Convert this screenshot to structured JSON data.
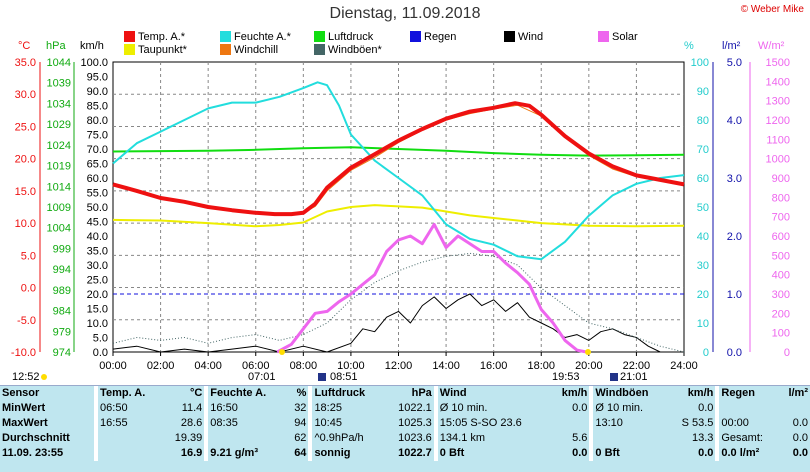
{
  "title": "Dienstag, 11.09.2018",
  "copyright": "© Weber Mike",
  "legend": [
    {
      "label": "Temp. A.*",
      "color": "#ee1111"
    },
    {
      "label": "Feuchte A.*",
      "color": "#22dddd"
    },
    {
      "label": "Luftdruck",
      "color": "#11dd11"
    },
    {
      "label": "Regen",
      "color": "#1111dd"
    },
    {
      "label": "Wind",
      "color": "#000000"
    },
    {
      "label": "Solar",
      "color": "#ee66ee"
    },
    {
      "label": "Taupunkt*",
      "color": "#eeee00"
    },
    {
      "label": "Windchill",
      "color": "#ee7711"
    },
    {
      "label": "Windböen*",
      "color": "#446666"
    }
  ],
  "units": {
    "temp": "°C",
    "press": "hPa",
    "wind": "km/h",
    "hum": "%",
    "rain": "l/m²",
    "solar": "W/m²"
  },
  "bottom_bar": {
    "left": "12:52",
    "sunrise": "07:01",
    "moonrise": "08:51",
    "sunset": "19:53",
    "moonset": "21:01"
  },
  "chart_data": {
    "type": "line",
    "x_ticks": [
      "00:00",
      "02:00",
      "04:00",
      "06:00",
      "08:00",
      "10:00",
      "12:00",
      "14:00",
      "16:00",
      "18:00",
      "20:00",
      "22:00",
      "24:00"
    ],
    "axes": {
      "temp": {
        "label": "°C",
        "min": -10,
        "max": 35,
        "ticks": [
          "35.0",
          "30.0",
          "25.0",
          "20.0",
          "15.0",
          "10.0",
          "5.0",
          "0.0",
          "-5.0",
          "-10.0"
        ]
      },
      "press": {
        "label": "hPa",
        "min": 974,
        "max": 1044,
        "ticks": [
          "1044",
          "1039",
          "1034",
          "1029",
          "1024",
          "1019",
          "1014",
          "1009",
          "1004",
          "999",
          "994",
          "989",
          "984",
          "979",
          "974"
        ]
      },
      "wind": {
        "label": "km/h",
        "min": 0,
        "max": 100,
        "ticks": [
          "100.0",
          "95.0",
          "90.0",
          "85.0",
          "80.0",
          "75.0",
          "70.0",
          "65.0",
          "60.0",
          "55.0",
          "50.0",
          "45.0",
          "40.0",
          "35.0",
          "30.0",
          "25.0",
          "20.0",
          "15.0",
          "10.0",
          "5.0",
          "0.0"
        ]
      },
      "hum": {
        "label": "%",
        "min": 0,
        "max": 100,
        "ticks": [
          "100",
          "90",
          "80",
          "70",
          "60",
          "50",
          "40",
          "30",
          "20",
          "10",
          "0"
        ]
      },
      "rain": {
        "label": "l/m²",
        "min": 0,
        "max": 5,
        "ticks": [
          "5.0",
          "4.0",
          "3.0",
          "2.0",
          "1.0",
          "0.0"
        ]
      },
      "solar": {
        "label": "W/m²",
        "min": 0,
        "max": 1500,
        "ticks": [
          "1500",
          "1400",
          "1300",
          "1200",
          "1100",
          "1000",
          "900",
          "800",
          "700",
          "600",
          "500",
          "400",
          "300",
          "200",
          "100",
          "0"
        ]
      }
    },
    "series": [
      {
        "name": "Temp. A.*",
        "axis": "temp",
        "color": "#ee1111",
        "width": 4,
        "points": [
          [
            0,
            16.0
          ],
          [
            1,
            15.0
          ],
          [
            2,
            13.9
          ],
          [
            3,
            13.3
          ],
          [
            4,
            12.5
          ],
          [
            5,
            12.0
          ],
          [
            6,
            11.6
          ],
          [
            6.8,
            11.4
          ],
          [
            7.5,
            11.4
          ],
          [
            8,
            11.6
          ],
          [
            8.5,
            13.0
          ],
          [
            9,
            15.5
          ],
          [
            10,
            18.6
          ],
          [
            11,
            20.7
          ],
          [
            12,
            22.8
          ],
          [
            13,
            24.6
          ],
          [
            14,
            26.2
          ],
          [
            15,
            27.3
          ],
          [
            16,
            27.9
          ],
          [
            16.9,
            28.6
          ],
          [
            17.5,
            28.2
          ],
          [
            18,
            26.8
          ],
          [
            19,
            23.5
          ],
          [
            20,
            20.8
          ],
          [
            21,
            18.8
          ],
          [
            22,
            17.4
          ],
          [
            23,
            16.7
          ],
          [
            24,
            16.0
          ]
        ]
      },
      {
        "name": "Windchill",
        "axis": "temp",
        "color": "#ee7711",
        "width": 1,
        "points": [
          [
            0,
            16.0
          ],
          [
            2,
            13.9
          ],
          [
            4,
            12.5
          ],
          [
            6,
            11.6
          ],
          [
            7,
            11.4
          ],
          [
            8,
            11.6
          ],
          [
            8.5,
            12.6
          ],
          [
            9,
            15.0
          ],
          [
            10,
            18.2
          ],
          [
            11,
            20.2
          ],
          [
            12,
            22.5
          ],
          [
            13,
            24.4
          ],
          [
            14,
            26.0
          ],
          [
            15,
            27.0
          ],
          [
            16,
            27.7
          ],
          [
            17,
            28.3
          ],
          [
            18,
            26.6
          ],
          [
            19,
            23.3
          ],
          [
            20,
            20.5
          ],
          [
            21,
            18.4
          ],
          [
            22,
            17.2
          ],
          [
            24,
            16.0
          ]
        ]
      },
      {
        "name": "Feuchte A.*",
        "axis": "hum",
        "color": "#22dddd",
        "width": 2,
        "points": [
          [
            0,
            65
          ],
          [
            1,
            72
          ],
          [
            2,
            76
          ],
          [
            3,
            80
          ],
          [
            4,
            84
          ],
          [
            5,
            86
          ],
          [
            6,
            86
          ],
          [
            7,
            88
          ],
          [
            8,
            91
          ],
          [
            8.6,
            93
          ],
          [
            9,
            92
          ],
          [
            9.5,
            85
          ],
          [
            10,
            75
          ],
          [
            11,
            66
          ],
          [
            12,
            60
          ],
          [
            13,
            54
          ],
          [
            14,
            44
          ],
          [
            15,
            39
          ],
          [
            16,
            37
          ],
          [
            17,
            33
          ],
          [
            18,
            32
          ],
          [
            19,
            38
          ],
          [
            20,
            47
          ],
          [
            21,
            54
          ],
          [
            22,
            58
          ],
          [
            23,
            60
          ],
          [
            24,
            61
          ]
        ]
      },
      {
        "name": "Luftdruck",
        "axis": "press",
        "color": "#11dd11",
        "width": 2,
        "points": [
          [
            0,
            1022.4
          ],
          [
            2,
            1022.5
          ],
          [
            4,
            1022.6
          ],
          [
            6,
            1022.8
          ],
          [
            8,
            1023.2
          ],
          [
            10,
            1023.4
          ],
          [
            12,
            1023.0
          ],
          [
            14,
            1022.6
          ],
          [
            16,
            1022.0
          ],
          [
            18,
            1021.6
          ],
          [
            20,
            1021.4
          ],
          [
            22,
            1021.5
          ],
          [
            24,
            1021.6
          ]
        ]
      },
      {
        "name": "Taupunkt*",
        "axis": "temp",
        "color": "#eeee00",
        "width": 2,
        "points": [
          [
            0,
            10.5
          ],
          [
            2,
            10.4
          ],
          [
            4,
            10.0
          ],
          [
            6,
            9.5
          ],
          [
            7,
            9.7
          ],
          [
            8,
            10.1
          ],
          [
            9,
            11.8
          ],
          [
            10,
            12.5
          ],
          [
            11,
            12.8
          ],
          [
            12,
            12.6
          ],
          [
            13,
            12.4
          ],
          [
            14,
            11.8
          ],
          [
            15,
            11.2
          ],
          [
            16,
            10.8
          ],
          [
            17,
            10.4
          ],
          [
            18,
            10.0
          ],
          [
            19,
            9.8
          ],
          [
            20,
            9.6
          ],
          [
            22,
            9.5
          ],
          [
            24,
            9.6
          ]
        ]
      },
      {
        "name": "Solar",
        "axis": "solar",
        "color": "#ee66ee",
        "width": 3,
        "points": [
          [
            6.9,
            0
          ],
          [
            7.5,
            40
          ],
          [
            8,
            120
          ],
          [
            8.5,
            200
          ],
          [
            9,
            210
          ],
          [
            9.5,
            260
          ],
          [
            10,
            300
          ],
          [
            10.5,
            350
          ],
          [
            11,
            400
          ],
          [
            11.5,
            520
          ],
          [
            12,
            580
          ],
          [
            12.5,
            600
          ],
          [
            13,
            560
          ],
          [
            13.5,
            660
          ],
          [
            14,
            540
          ],
          [
            14.5,
            600
          ],
          [
            15,
            560
          ],
          [
            15.5,
            520
          ],
          [
            16,
            520
          ],
          [
            16.5,
            460
          ],
          [
            17,
            410
          ],
          [
            17.5,
            350
          ],
          [
            18,
            220
          ],
          [
            18.5,
            150
          ],
          [
            19,
            60
          ],
          [
            19.5,
            10
          ],
          [
            19.9,
            0
          ]
        ]
      },
      {
        "name": "Wind",
        "axis": "wind",
        "color": "#000000",
        "width": 1,
        "points": [
          [
            0,
            1
          ],
          [
            1,
            2
          ],
          [
            2,
            0
          ],
          [
            3,
            1
          ],
          [
            4,
            0
          ],
          [
            5,
            1
          ],
          [
            6,
            2
          ],
          [
            7,
            0
          ],
          [
            8,
            2
          ],
          [
            9,
            0
          ],
          [
            10,
            3
          ],
          [
            10.5,
            8
          ],
          [
            11,
            7
          ],
          [
            11.5,
            12
          ],
          [
            12,
            14
          ],
          [
            12.5,
            10
          ],
          [
            13,
            16
          ],
          [
            13.5,
            19
          ],
          [
            14,
            15
          ],
          [
            14.5,
            18
          ],
          [
            15,
            20
          ],
          [
            15.5,
            16
          ],
          [
            16,
            18
          ],
          [
            16.5,
            14
          ],
          [
            17,
            17
          ],
          [
            17.5,
            12
          ],
          [
            18,
            10
          ],
          [
            18.5,
            8
          ],
          [
            19,
            5
          ],
          [
            19.5,
            6
          ],
          [
            20,
            4
          ],
          [
            20.5,
            7
          ],
          [
            21,
            8
          ],
          [
            21.5,
            6
          ],
          [
            22,
            5
          ],
          [
            22.5,
            2
          ],
          [
            23,
            0
          ],
          [
            24,
            0
          ]
        ]
      },
      {
        "name": "Windböen*",
        "axis": "wind",
        "color": "#446666",
        "width": 1,
        "dashed": true,
        "points": [
          [
            0,
            3
          ],
          [
            1,
            5
          ],
          [
            2,
            4
          ],
          [
            3,
            5
          ],
          [
            4,
            3
          ],
          [
            5,
            5
          ],
          [
            6,
            6
          ],
          [
            7,
            4
          ],
          [
            8,
            6
          ],
          [
            9,
            10
          ],
          [
            10,
            18
          ],
          [
            11,
            24
          ],
          [
            12,
            28
          ],
          [
            13,
            31
          ],
          [
            14,
            33
          ],
          [
            15,
            34
          ],
          [
            16,
            33
          ],
          [
            17,
            30
          ],
          [
            18,
            22
          ],
          [
            19,
            16
          ],
          [
            20,
            10
          ],
          [
            21,
            8
          ],
          [
            22,
            5
          ],
          [
            23,
            2
          ],
          [
            24,
            0
          ]
        ]
      }
    ],
    "rain_level": 1.0
  },
  "table": {
    "header": [
      "Sensor",
      "Temp. A.",
      "°C",
      "Feuchte A.",
      "%",
      "Luftdruck",
      "hPa",
      "Wind",
      "km/h",
      "Windböen",
      "km/h",
      "Regen",
      "l/m²"
    ],
    "rows": [
      [
        "MinWert",
        "06:50",
        "11.4",
        "16:50",
        "32",
        "18:25",
        "1022.1",
        "Ø 10 min.",
        "0.0",
        "Ø 10 min.",
        "0.0",
        "",
        ""
      ],
      [
        "MaxWert",
        "16:55",
        "28.6",
        "08:35",
        "94",
        "10:45",
        "1025.3",
        "15:05  S-SO 23.6",
        "",
        "13:10",
        "S 53.5",
        "00:00",
        "0.0"
      ],
      [
        "Durchschnitt",
        "",
        "19.39",
        "",
        "62",
        "^0.9hPa/h",
        "1023.6",
        "134.1 km",
        "5.6",
        "",
        "13.3",
        "Gesamt:",
        "0.0"
      ],
      [
        "11.09. 23:55",
        "",
        "16.9",
        "9.21 g/m³",
        "64",
        "sonnig",
        "1022.7",
        "0 Bft",
        "0.0",
        "0 Bft",
        "0.0",
        "0.0 l/m²",
        "0.0"
      ]
    ]
  }
}
